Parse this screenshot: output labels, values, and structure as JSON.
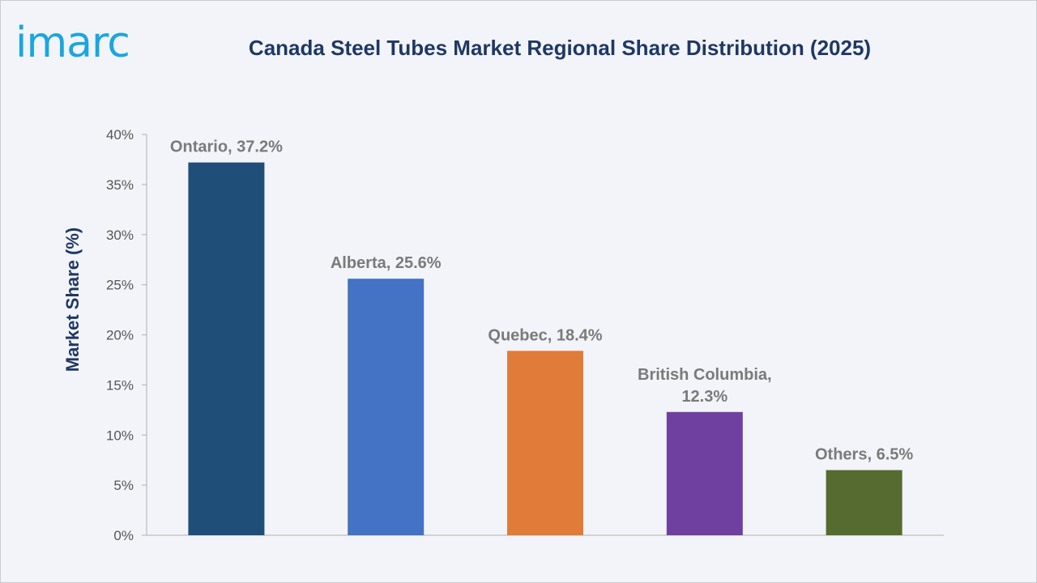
{
  "logo": {
    "text": "imarc"
  },
  "chart_data": {
    "type": "bar",
    "title": "Canada Steel Tubes Market Regional Share Distribution (2025)",
    "xlabel": "",
    "ylabel": "Market Share (%)",
    "ylim": [
      0,
      40
    ],
    "yticks": [
      "0%",
      "5%",
      "10%",
      "15%",
      "20%",
      "25%",
      "30%",
      "35%",
      "40%"
    ],
    "categories": [
      "Ontario",
      "Alberta",
      "Quebec",
      "British Columbia",
      "Others"
    ],
    "values": [
      37.2,
      25.6,
      18.4,
      12.3,
      6.5
    ],
    "data_labels": [
      [
        "Ontario, 37.2%"
      ],
      [
        "Alberta, 25.6%"
      ],
      [
        "Quebec, 18.4%"
      ],
      [
        "British Columbia,",
        "12.3%"
      ],
      [
        "Others, 6.5%"
      ]
    ],
    "colors": [
      "#1f4e79",
      "#4472c4",
      "#e07b39",
      "#7040a0",
      "#556b2f"
    ],
    "grid": false,
    "legend": "none"
  }
}
